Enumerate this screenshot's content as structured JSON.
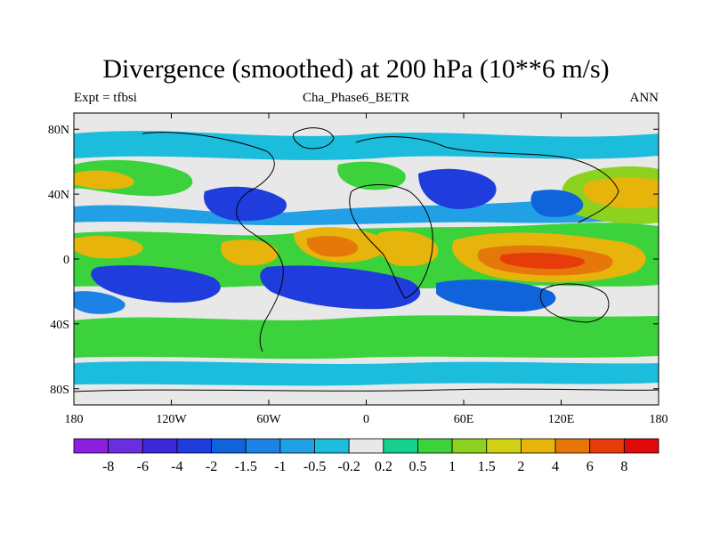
{
  "title": "Divergence (smoothed) at 200 hPa (10**6 m/s)",
  "left_label": "Expt = tfbsi",
  "center_label": "Cha_Phase6_BETR",
  "right_label": "ANN",
  "colors": {
    "land_outline": "#000000",
    "frame": "#000000",
    "background_field": "#e8e8e8"
  },
  "chart_data": {
    "type": "heatmap",
    "projection": "cylindrical-equidistant",
    "x_range": [
      -180,
      180
    ],
    "y_range": [
      -90,
      90
    ],
    "x_tick_labels": [
      "180",
      "120W",
      "60W",
      "0",
      "60E",
      "120E",
      "180"
    ],
    "y_tick_labels": [
      "80N",
      "40N",
      "0",
      "40S",
      "80S"
    ],
    "colorbar": {
      "labels": [
        "-8",
        "-6",
        "-4",
        "-2",
        "-1.5",
        "-1",
        "-0.5",
        "-0.2",
        "0.2",
        "0.5",
        "1",
        "1.5",
        "2",
        "4",
        "6",
        "8"
      ],
      "colors": [
        "#8c1ee0",
        "#6a2ee0",
        "#3b28d8",
        "#1f3cdc",
        "#0f64dc",
        "#1c82e6",
        "#22a0e6",
        "#1cbcdc",
        "#e8e8e8",
        "#14d08c",
        "#3cd23c",
        "#8cd21e",
        "#d2d214",
        "#e6b40a",
        "#e6780a",
        "#e63c0a",
        "#e00a0a"
      ]
    },
    "features": [
      {
        "region": "Western Pacific / Indonesia",
        "sign": "divergence",
        "peak": 6
      },
      {
        "region": "Equatorial Africa",
        "sign": "divergence",
        "peak": 4
      },
      {
        "region": "Amazon / South America",
        "sign": "divergence",
        "peak": 4
      },
      {
        "region": "Eastern Pacific subtropics",
        "sign": "convergence",
        "peak": -4
      },
      {
        "region": "South Atlantic subtropics",
        "sign": "convergence",
        "peak": -4
      },
      {
        "region": "Arabian / Sahara region",
        "sign": "convergence",
        "peak": -2
      }
    ]
  }
}
